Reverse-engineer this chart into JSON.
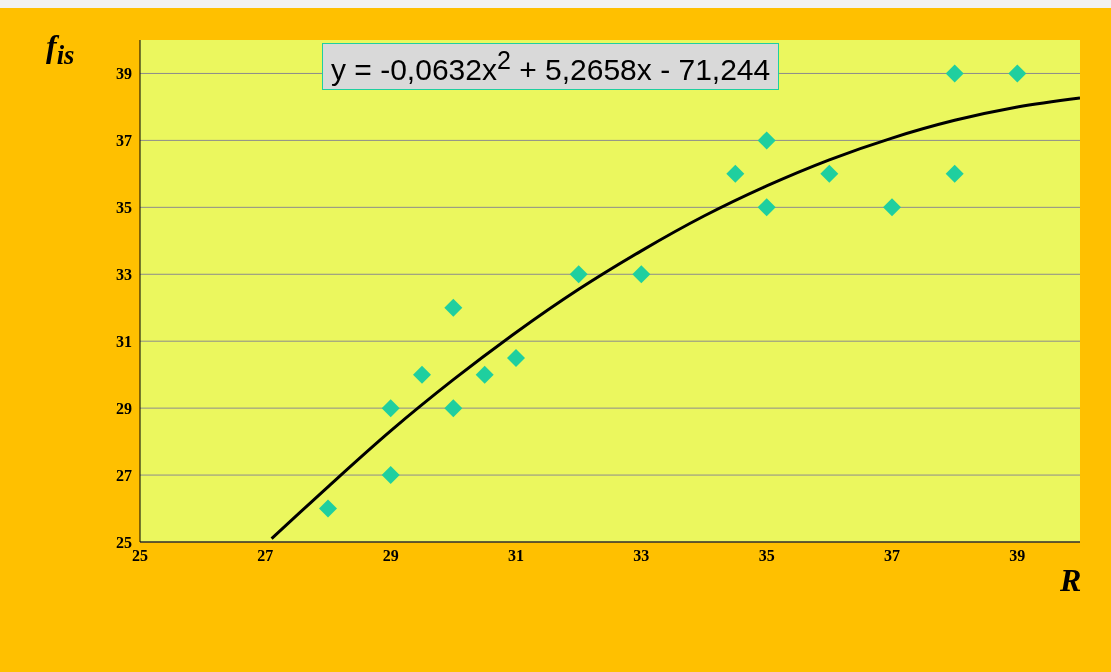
{
  "chart_data": {
    "type": "scatter",
    "xlabel": "R",
    "ylabel": "f$_{is}$",
    "annotations": [
      "y = -0,0632x$^{2}$ + 5,2658x - 71,244"
    ],
    "xlim": [
      25,
      40
    ],
    "ylim": [
      25,
      40
    ],
    "xticks": [
      25,
      27,
      29,
      31,
      33,
      35,
      37,
      39
    ],
    "yticks": [
      25,
      27,
      29,
      31,
      33,
      35,
      37,
      39
    ],
    "grid": "y",
    "series": [
      {
        "color": "#1fcf9f",
        "marker": "diamond",
        "x": [
          28,
          29,
          29,
          29.5,
          30,
          30,
          30.5,
          31,
          32,
          33,
          34.5,
          35,
          35,
          36,
          37,
          38,
          38,
          39
        ],
        "values": [
          26,
          29,
          27,
          30,
          32,
          29,
          30,
          30.5,
          33,
          33,
          36,
          37,
          35,
          36,
          35,
          39,
          36,
          39
        ]
      },
      {
        "type": "line",
        "color": "#000000",
        "marker": "none",
        "line_style": "solid",
        "x": [
          27.1,
          28,
          29,
          30,
          31,
          32,
          33,
          34,
          35,
          36,
          37,
          38,
          39,
          40
        ],
        "values": [
          25.1,
          26.65,
          28.32,
          29.85,
          31.26,
          32.55,
          33.7,
          34.74,
          35.64,
          36.42,
          37.07,
          37.6,
          38.0,
          38.27
        ]
      }
    ]
  }
}
